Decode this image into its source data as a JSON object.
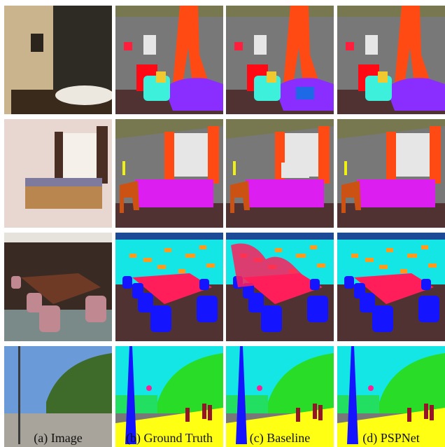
{
  "captions": [
    "(a) Image",
    "(b) Ground Truth",
    "(c) Baseline",
    "(d) PSPNet"
  ]
}
